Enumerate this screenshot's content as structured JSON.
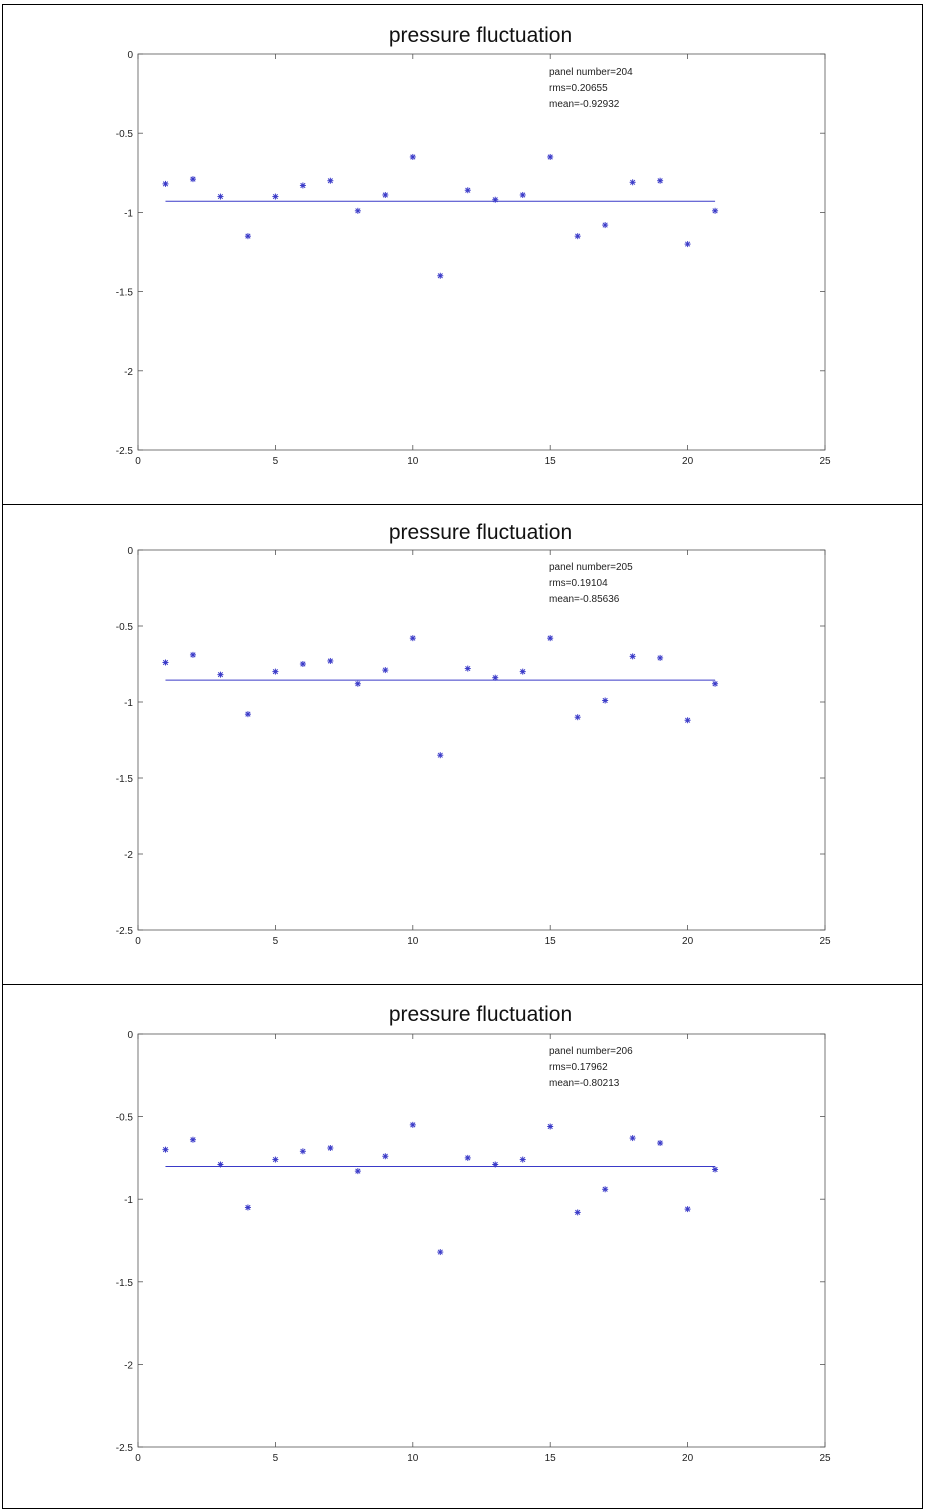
{
  "chart_data": [
    {
      "type": "scatter",
      "title": "pressure fluctuation",
      "xlabel": "",
      "ylabel": "",
      "xlim": [
        0,
        25
      ],
      "ylim": [
        -2.5,
        0
      ],
      "xticks": [
        0,
        5,
        10,
        15,
        20,
        25
      ],
      "yticks": [
        0,
        -0.5,
        -1,
        -1.5,
        -2,
        -2.5
      ],
      "xtick_labels": [
        "0",
        "5",
        "10",
        "15",
        "20",
        "25"
      ],
      "ytick_labels": [
        "0",
        "-0.5",
        "-1",
        "-1.5",
        "-2",
        "-2.5"
      ],
      "annotations": [
        "panel number=204",
        "rms=0.20655",
        "mean=-0.92932"
      ],
      "mean_line": {
        "value": -0.92932,
        "x_range": [
          1,
          21
        ]
      },
      "series": [
        {
          "marker": "*",
          "color": "#3a3ac8",
          "x": [
            1,
            2,
            3,
            4,
            5,
            6,
            7,
            8,
            9,
            10,
            11,
            12,
            13,
            14,
            15,
            16,
            17,
            18,
            19,
            20,
            21
          ],
          "y": [
            -0.82,
            -0.79,
            -0.9,
            -1.15,
            -0.9,
            -0.83,
            -0.8,
            -0.99,
            -0.89,
            -0.65,
            -1.4,
            -0.86,
            -0.92,
            -0.89,
            -0.65,
            -1.15,
            -1.08,
            -0.81,
            -0.8,
            -1.2,
            -0.99
          ]
        }
      ]
    },
    {
      "type": "scatter",
      "title": "pressure fluctuation",
      "xlabel": "",
      "ylabel": "",
      "xlim": [
        0,
        25
      ],
      "ylim": [
        -2.5,
        0
      ],
      "xticks": [
        0,
        5,
        10,
        15,
        20,
        25
      ],
      "yticks": [
        0,
        -0.5,
        -1,
        -1.5,
        -2,
        -2.5
      ],
      "xtick_labels": [
        "0",
        "5",
        "10",
        "15",
        "20",
        "25"
      ],
      "ytick_labels": [
        "0",
        "-0.5",
        "-1",
        "-1.5",
        "-2",
        "-2.5"
      ],
      "annotations": [
        "panel number=205",
        "rms=0.19104",
        "mean=-0.85636"
      ],
      "mean_line": {
        "value": -0.85636,
        "x_range": [
          1,
          21
        ]
      },
      "series": [
        {
          "marker": "*",
          "color": "#3a3ac8",
          "x": [
            1,
            2,
            3,
            4,
            5,
            6,
            7,
            8,
            9,
            10,
            11,
            12,
            13,
            14,
            15,
            16,
            17,
            18,
            19,
            20,
            21
          ],
          "y": [
            -0.74,
            -0.69,
            -0.82,
            -1.08,
            -0.8,
            -0.75,
            -0.73,
            -0.88,
            -0.79,
            -0.58,
            -1.35,
            -0.78,
            -0.84,
            -0.8,
            -0.58,
            -1.1,
            -0.99,
            -0.7,
            -0.71,
            -1.12,
            -0.88
          ]
        }
      ]
    },
    {
      "type": "scatter",
      "title": "pressure fluctuation",
      "xlabel": "",
      "ylabel": "",
      "xlim": [
        0,
        25
      ],
      "ylim": [
        -2.5,
        0
      ],
      "xticks": [
        0,
        5,
        10,
        15,
        20,
        25
      ],
      "yticks": [
        0,
        -0.5,
        -1,
        -1.5,
        -2,
        -2.5
      ],
      "xtick_labels": [
        "0",
        "5",
        "10",
        "15",
        "20",
        "25"
      ],
      "ytick_labels": [
        "0",
        "-0.5",
        "-1",
        "-1.5",
        "-2",
        "-2.5"
      ],
      "annotations": [
        "panel number=206",
        "rms=0.17962",
        "mean=-0.80213"
      ],
      "mean_line": {
        "value": -0.80213,
        "x_range": [
          1,
          21
        ]
      },
      "series": [
        {
          "marker": "*",
          "color": "#3a3ac8",
          "x": [
            1,
            2,
            3,
            4,
            5,
            6,
            7,
            8,
            9,
            10,
            11,
            12,
            13,
            14,
            15,
            16,
            17,
            18,
            19,
            20,
            21
          ],
          "y": [
            -0.7,
            -0.64,
            -0.79,
            -1.05,
            -0.76,
            -0.71,
            -0.69,
            -0.83,
            -0.74,
            -0.55,
            -1.32,
            -0.75,
            -0.79,
            -0.76,
            -0.56,
            -1.08,
            -0.94,
            -0.63,
            -0.66,
            -1.06,
            -0.82
          ]
        }
      ]
    }
  ]
}
